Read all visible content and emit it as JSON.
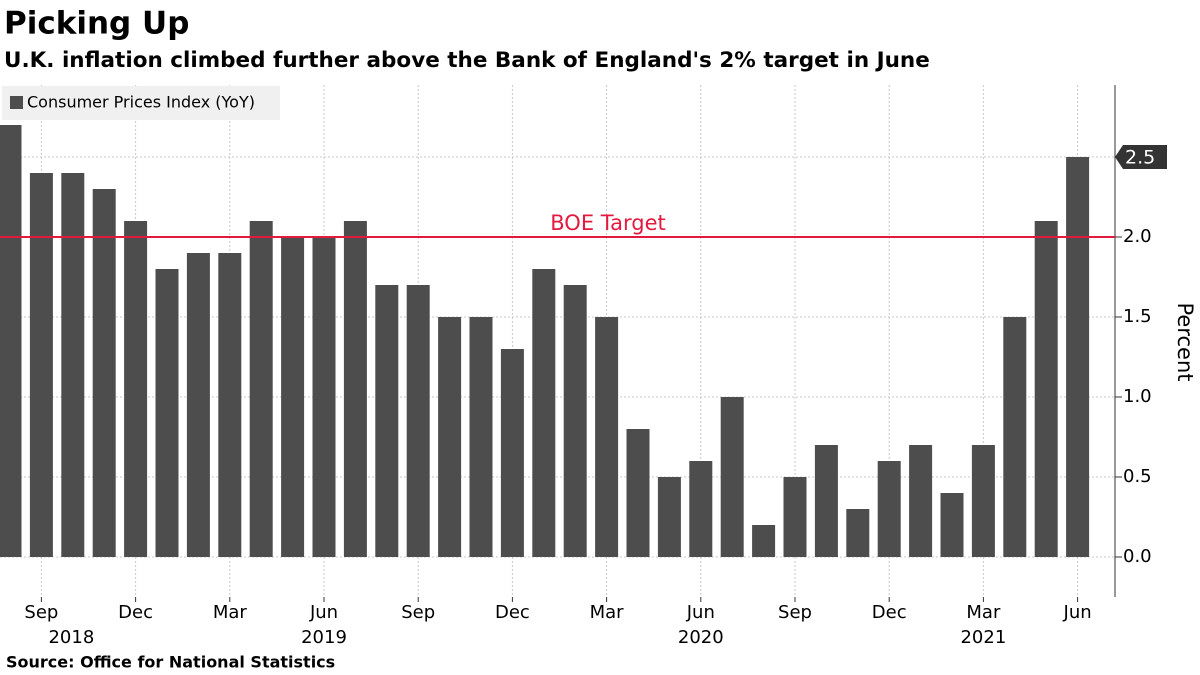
{
  "chart_data": {
    "type": "bar",
    "title": "Picking Up",
    "subtitle": "U.K. inflation climbed further above the Bank of England's 2% target in June",
    "source": "Source: Office for National Statistics",
    "y_axis_label": "Percent",
    "categories": [
      null,
      "Sep",
      null,
      null,
      "Dec",
      null,
      null,
      "Mar",
      null,
      null,
      "Jun",
      null,
      null,
      "Sep",
      null,
      null,
      "Dec",
      null,
      null,
      "Mar",
      null,
      null,
      "Jun",
      null,
      null,
      "Sep",
      null,
      null,
      "Dec",
      null,
      null,
      "Mar",
      null,
      null,
      "Jun"
    ],
    "years": [
      null,
      "2018",
      null,
      null,
      null,
      null,
      null,
      null,
      null,
      null,
      "2019",
      null,
      null,
      null,
      null,
      null,
      null,
      null,
      null,
      null,
      null,
      null,
      "2020",
      null,
      null,
      null,
      null,
      null,
      null,
      null,
      null,
      "2021",
      null,
      null,
      null
    ],
    "series": [
      {
        "name": "Consumer Prices Index (YoY)",
        "color": "#4d4d4d",
        "values": [
          2.7,
          2.4,
          2.4,
          2.3,
          2.1,
          1.8,
          1.9,
          1.9,
          2.1,
          2.0,
          2.0,
          2.1,
          1.7,
          1.7,
          1.5,
          1.5,
          1.3,
          1.8,
          1.7,
          1.5,
          0.8,
          0.5,
          0.6,
          1.0,
          0.2,
          0.5,
          0.7,
          0.3,
          0.6,
          0.7,
          0.4,
          0.7,
          1.5,
          2.1,
          2.5
        ]
      }
    ],
    "reference_lines": [
      {
        "value": 2,
        "label": "BOE Target",
        "color": "#e4193f"
      }
    ],
    "ylim": [
      -0.25,
      2.95
    ],
    "yticks": [
      {
        "value": 0,
        "label": "0.0"
      },
      0.5,
      {
        "value": 1,
        "label": "1.0"
      },
      1.5,
      {
        "value": 2,
        "label": "2.0"
      },
      2.5
    ],
    "grid": true,
    "legend": "top-left"
  }
}
